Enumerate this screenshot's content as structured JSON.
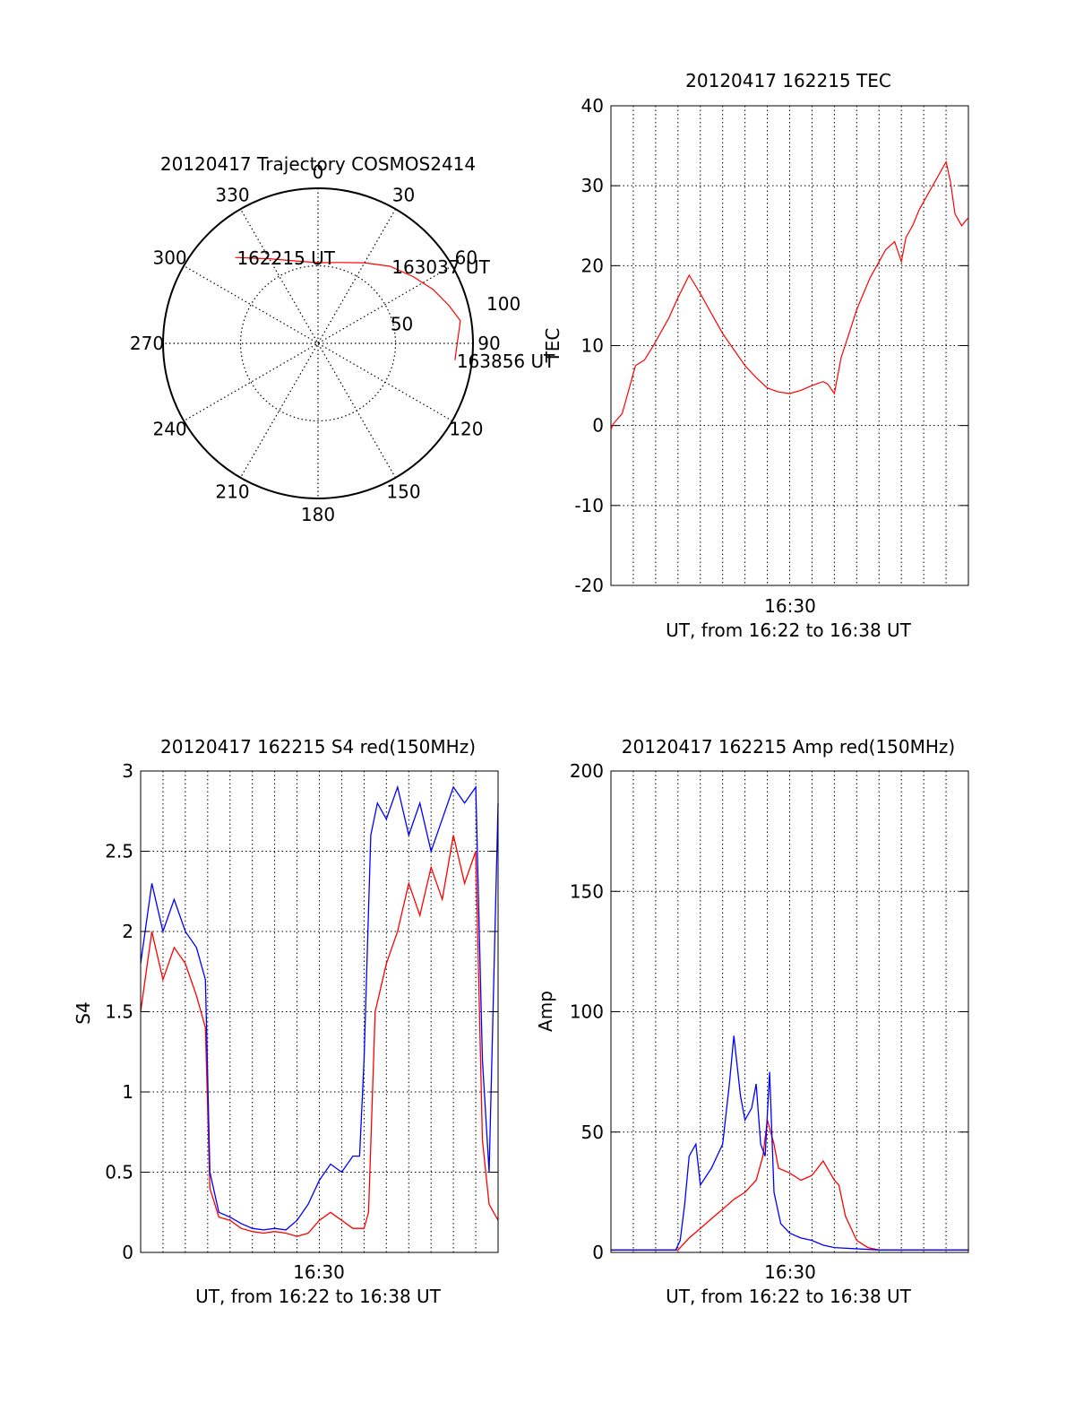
{
  "chart_data": [
    {
      "type": "polar",
      "title": "20120417 Trajectory COSMOS2414",
      "angle_labels": [
        "0",
        "30",
        "60",
        "90",
        "120",
        "150",
        "180",
        "210",
        "240",
        "270",
        "300",
        "330"
      ],
      "radial_labels": [
        "50",
        "100"
      ],
      "trajectory_color": "#ff0000",
      "trajectory": [
        {
          "azimuth": 316,
          "zenith": 77,
          "label": "162215 UT"
        },
        {
          "azimuth": 330,
          "zenith": 63
        },
        {
          "azimuth": 345,
          "zenith": 55
        },
        {
          "azimuth": 0,
          "zenith": 52
        },
        {
          "azimuth": 15,
          "zenith": 54
        },
        {
          "azimuth": 30,
          "zenith": 60
        },
        {
          "azimuth": 43,
          "zenith": 68,
          "label": "163037 UT"
        },
        {
          "azimuth": 55,
          "zenith": 75
        },
        {
          "azimuth": 65,
          "zenith": 82
        },
        {
          "azimuth": 74,
          "zenith": 88
        },
        {
          "azimuth": 81,
          "zenith": 93
        },
        {
          "azimuth": 97,
          "zenith": 89,
          "label": "163856 UT"
        }
      ]
    },
    {
      "type": "line",
      "title": "20120417 162215 TEC",
      "xlabel": "UT, from 16:22 to 16:38 UT",
      "ylabel": "TEC",
      "x_tick_labels": [
        "16:30"
      ],
      "ylim": [
        -20,
        40
      ],
      "y_ticks": [
        -20,
        -10,
        0,
        10,
        20,
        30,
        40
      ],
      "grid": true,
      "series": [
        {
          "color": "#ff0000",
          "x": [
            0,
            0.1,
            0.5,
            0.8,
            1.1,
            1.5,
            1.9,
            2.2,
            2.6,
            3.0,
            3.5,
            4.0,
            4.5,
            5.0,
            5.5,
            6.0,
            6.5,
            7.0,
            7.5,
            8.0,
            8.5,
            9.0,
            9.5,
            9.7,
            10.0,
            10.3,
            10.6,
            11.0,
            11.3,
            11.6,
            12.0,
            12.3,
            12.7,
            13.0,
            13.2,
            13.5,
            13.8,
            14.2,
            14.6,
            15.0,
            15.2,
            15.4,
            15.7,
            16.0
          ],
          "y": [
            -0.5,
            0.2,
            1.5,
            4.5,
            7.5,
            8.2,
            10.0,
            11.5,
            13.5,
            16.0,
            18.8,
            16.5,
            14.0,
            11.5,
            9.5,
            7.5,
            6.0,
            4.7,
            4.2,
            4.0,
            4.4,
            5.0,
            5.5,
            5.2,
            4.0,
            8.5,
            11.0,
            14.5,
            16.5,
            18.5,
            20.5,
            22.0,
            23.0,
            20.5,
            23.5,
            25.0,
            27.0,
            29.0,
            31.0,
            33.0,
            30.5,
            26.5,
            25.0,
            26.0
          ]
        }
      ]
    },
    {
      "type": "line",
      "title": "20120417 162215 S4 red(150MHz)",
      "xlabel": "UT, from 16:22 to 16:38 UT",
      "ylabel": "S4",
      "x_tick_labels": [
        "16:30"
      ],
      "ylim": [
        0,
        3
      ],
      "y_ticks": [
        0,
        0.5,
        1,
        1.5,
        2,
        2.5,
        3
      ],
      "grid": true,
      "series": [
        {
          "color": "#ff0000",
          "x": [
            0,
            0.5,
            1.0,
            1.5,
            2.0,
            2.5,
            2.9,
            3.1,
            3.5,
            4.0,
            4.5,
            5.0,
            5.5,
            6.0,
            6.5,
            7.0,
            7.5,
            8.0,
            8.5,
            9.0,
            9.5,
            10.0,
            10.2,
            10.5,
            11.0,
            11.5,
            12.0,
            12.5,
            13.0,
            13.5,
            14.0,
            14.5,
            15.0,
            15.3,
            15.6,
            16.0
          ],
          "y": [
            1.5,
            2.0,
            1.7,
            1.9,
            1.8,
            1.6,
            1.4,
            0.4,
            0.22,
            0.2,
            0.15,
            0.13,
            0.12,
            0.13,
            0.12,
            0.1,
            0.12,
            0.2,
            0.25,
            0.2,
            0.15,
            0.15,
            0.25,
            1.5,
            1.8,
            2.0,
            2.3,
            2.1,
            2.4,
            2.2,
            2.6,
            2.3,
            2.5,
            0.7,
            0.3,
            0.2
          ]
        },
        {
          "color": "#0000ff",
          "x": [
            0,
            0.5,
            1.0,
            1.5,
            2.0,
            2.5,
            2.9,
            3.1,
            3.5,
            4.0,
            4.5,
            5.0,
            5.5,
            6.0,
            6.5,
            7.0,
            7.5,
            8.0,
            8.5,
            9.0,
            9.5,
            9.8,
            10.0,
            10.3,
            10.6,
            11.0,
            11.5,
            12.0,
            12.5,
            13.0,
            13.5,
            14.0,
            14.5,
            15.0,
            15.3,
            15.6,
            16.0
          ],
          "y": [
            1.8,
            2.3,
            2.0,
            2.2,
            2.0,
            1.9,
            1.7,
            0.5,
            0.25,
            0.22,
            0.18,
            0.15,
            0.14,
            0.15,
            0.14,
            0.2,
            0.3,
            0.45,
            0.55,
            0.5,
            0.6,
            0.6,
            1.2,
            2.6,
            2.8,
            2.7,
            2.9,
            2.6,
            2.8,
            2.5,
            2.7,
            2.9,
            2.8,
            2.9,
            1.2,
            0.5,
            2.8
          ]
        }
      ]
    },
    {
      "type": "line",
      "title": "20120417 162215 Amp red(150MHz)",
      "xlabel": "UT, from 16:22 to 16:38 UT",
      "ylabel": "Amp",
      "x_tick_labels": [
        "16:30"
      ],
      "ylim": [
        0,
        200
      ],
      "y_ticks": [
        0,
        50,
        100,
        150,
        200
      ],
      "grid": true,
      "series": [
        {
          "color": "#ff0000",
          "x": [
            0,
            2,
            3,
            3.2,
            3.5,
            4.0,
            4.5,
            5.0,
            5.5,
            6.0,
            6.5,
            6.8,
            7.0,
            7.3,
            7.5,
            8.0,
            8.5,
            9.0,
            9.5,
            10.0,
            10.2,
            10.5,
            11.0,
            11.5,
            12,
            14,
            16
          ],
          "y": [
            1,
            1,
            1,
            3,
            6,
            10,
            14,
            18,
            22,
            25,
            30,
            40,
            55,
            45,
            35,
            33,
            30,
            32,
            38,
            30,
            28,
            15,
            5,
            2,
            1,
            1,
            1
          ]
        },
        {
          "color": "#0000ff",
          "x": [
            0,
            1,
            2,
            2.9,
            3.1,
            3.3,
            3.5,
            3.8,
            4.0,
            4.5,
            5.0,
            5.3,
            5.5,
            5.8,
            6.0,
            6.3,
            6.5,
            6.7,
            6.9,
            7.1,
            7.3,
            7.6,
            8.0,
            8.5,
            9.0,
            9.5,
            10,
            12,
            14,
            16
          ],
          "y": [
            1,
            1,
            1,
            1,
            5,
            20,
            40,
            45,
            28,
            35,
            45,
            70,
            90,
            65,
            55,
            60,
            70,
            45,
            40,
            75,
            25,
            12,
            8,
            6,
            5,
            3,
            2,
            1,
            1,
            1
          ]
        }
      ]
    }
  ]
}
